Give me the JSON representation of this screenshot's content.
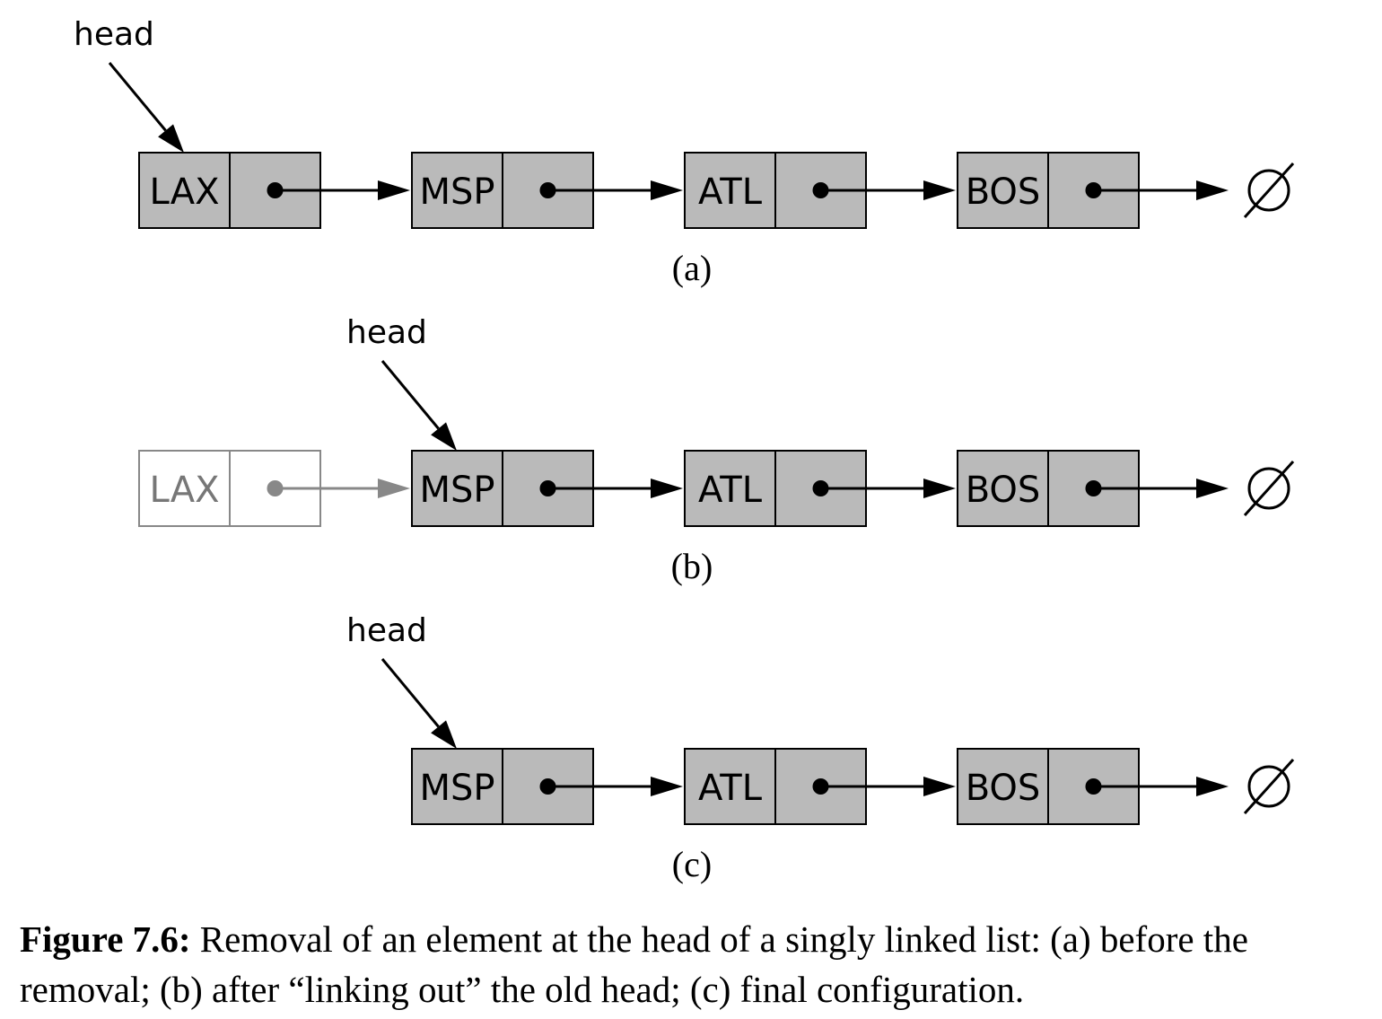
{
  "figure": {
    "head_label": "head",
    "null_symbol": "∅",
    "panels": [
      {
        "id": "a",
        "label": "(a)",
        "nodes": [
          {
            "value": "LAX",
            "faded": false
          },
          {
            "value": "MSP",
            "faded": false
          },
          {
            "value": "ATL",
            "faded": false
          },
          {
            "value": "BOS",
            "faded": false
          }
        ],
        "head_points_to": "LAX"
      },
      {
        "id": "b",
        "label": "(b)",
        "nodes": [
          {
            "value": "LAX",
            "faded": true
          },
          {
            "value": "MSP",
            "faded": false
          },
          {
            "value": "ATL",
            "faded": false
          },
          {
            "value": "BOS",
            "faded": false
          }
        ],
        "head_points_to": "MSP"
      },
      {
        "id": "c",
        "label": "(c)",
        "nodes": [
          {
            "value": "MSP",
            "faded": false
          },
          {
            "value": "ATL",
            "faded": false
          },
          {
            "value": "BOS",
            "faded": false
          }
        ],
        "head_points_to": "MSP"
      }
    ]
  },
  "caption": {
    "figure_label": "Figure 7.6:",
    "text": " Removal of an element at the head of a singly linked list: (a) before the removal; (b) after “linking out” the old head; (c) final configuration."
  },
  "colors": {
    "node_fill": "#bababa",
    "stroke": "#000000",
    "faded_stroke": "#888888",
    "faded_text": "#777777"
  }
}
